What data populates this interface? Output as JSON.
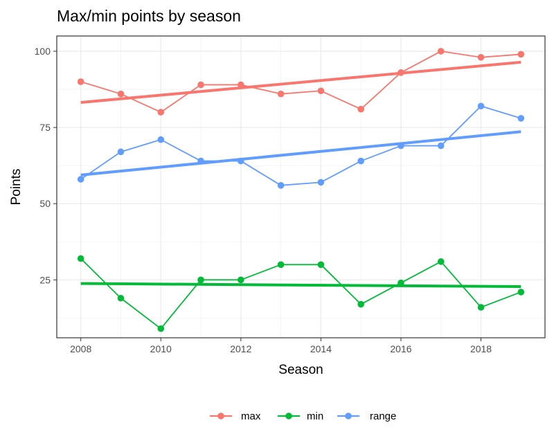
{
  "chart_data": {
    "type": "line",
    "title": "Max/min points by season",
    "xlabel": "Season",
    "ylabel": "Points",
    "xlim": [
      2007.4,
      2019.6
    ],
    "ylim": [
      6,
      105
    ],
    "x_ticks": [
      2008,
      2010,
      2012,
      2014,
      2016,
      2018
    ],
    "y_ticks": [
      25,
      50,
      75,
      100
    ],
    "grid": true,
    "legend_position": "bottom",
    "x": [
      2008,
      2009,
      2010,
      2011,
      2012,
      2013,
      2014,
      2015,
      2016,
      2017,
      2018,
      2019
    ],
    "series": [
      {
        "name": "max",
        "color": "#F8766D",
        "values": [
          90,
          86,
          80,
          89,
          89,
          86,
          87,
          81,
          93,
          100,
          98,
          99
        ],
        "trend": [
          83.2,
          96.4
        ]
      },
      {
        "name": "min",
        "color": "#00BA38",
        "values": [
          32,
          19,
          9,
          25,
          25,
          30,
          30,
          17,
          24,
          31,
          16,
          21
        ],
        "trend": [
          23.8,
          22.8
        ]
      },
      {
        "name": "range",
        "color": "#619CFF",
        "values": [
          58,
          67,
          71,
          64,
          64,
          56,
          57,
          64,
          69,
          69,
          82,
          78
        ],
        "trend": [
          59.4,
          73.6
        ]
      }
    ]
  }
}
